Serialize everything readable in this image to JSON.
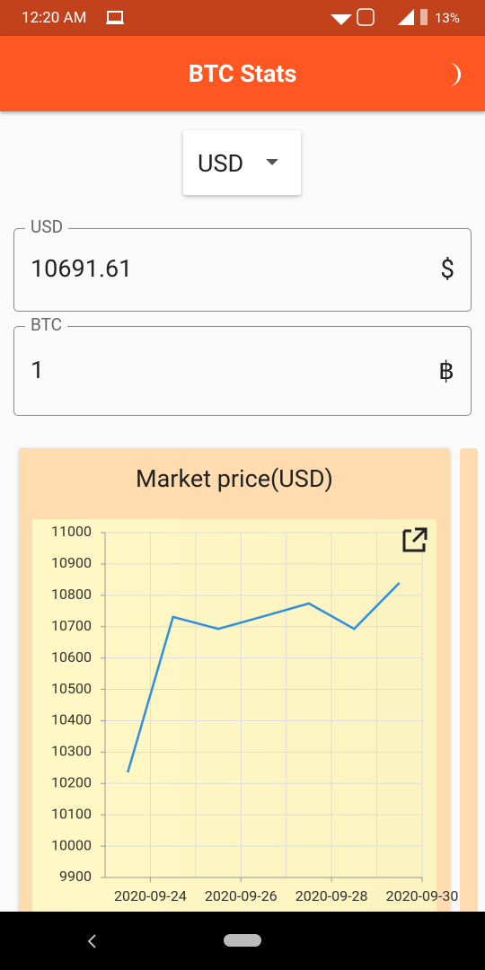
{
  "status_bar": {
    "time": "12:20 AM",
    "battery": "13%"
  },
  "app_bar": {
    "title": "BTC Stats"
  },
  "currency_select": {
    "value": "USD"
  },
  "fields": [
    {
      "label": "USD",
      "value": "10691.61",
      "suffix": "$"
    },
    {
      "label": "BTC",
      "value": "1",
      "suffix": "฿"
    }
  ],
  "card": {
    "title": "Market price(USD)"
  },
  "chart_data": {
    "type": "line",
    "x": [
      "2020-09-23",
      "2020-09-24",
      "2020-09-25",
      "2020-09-26",
      "2020-09-27",
      "2020-09-28",
      "2020-09-29"
    ],
    "series": [
      {
        "name": "Market price",
        "color": "#2f8fdc",
        "values": [
          10235,
          10731,
          10693,
          10733,
          10774,
          10693,
          10840
        ]
      }
    ],
    "xlim": [
      "2020-09-23",
      "2020-09-30"
    ],
    "xticks": [
      "2020-09-24",
      "2020-09-26",
      "2020-09-28",
      "2020-09-30"
    ],
    "ylim": [
      9900,
      11000
    ],
    "yticks": [
      9900,
      10000,
      10100,
      10200,
      10300,
      10400,
      10500,
      10600,
      10700,
      10800,
      10900,
      11000
    ],
    "grid": true
  }
}
